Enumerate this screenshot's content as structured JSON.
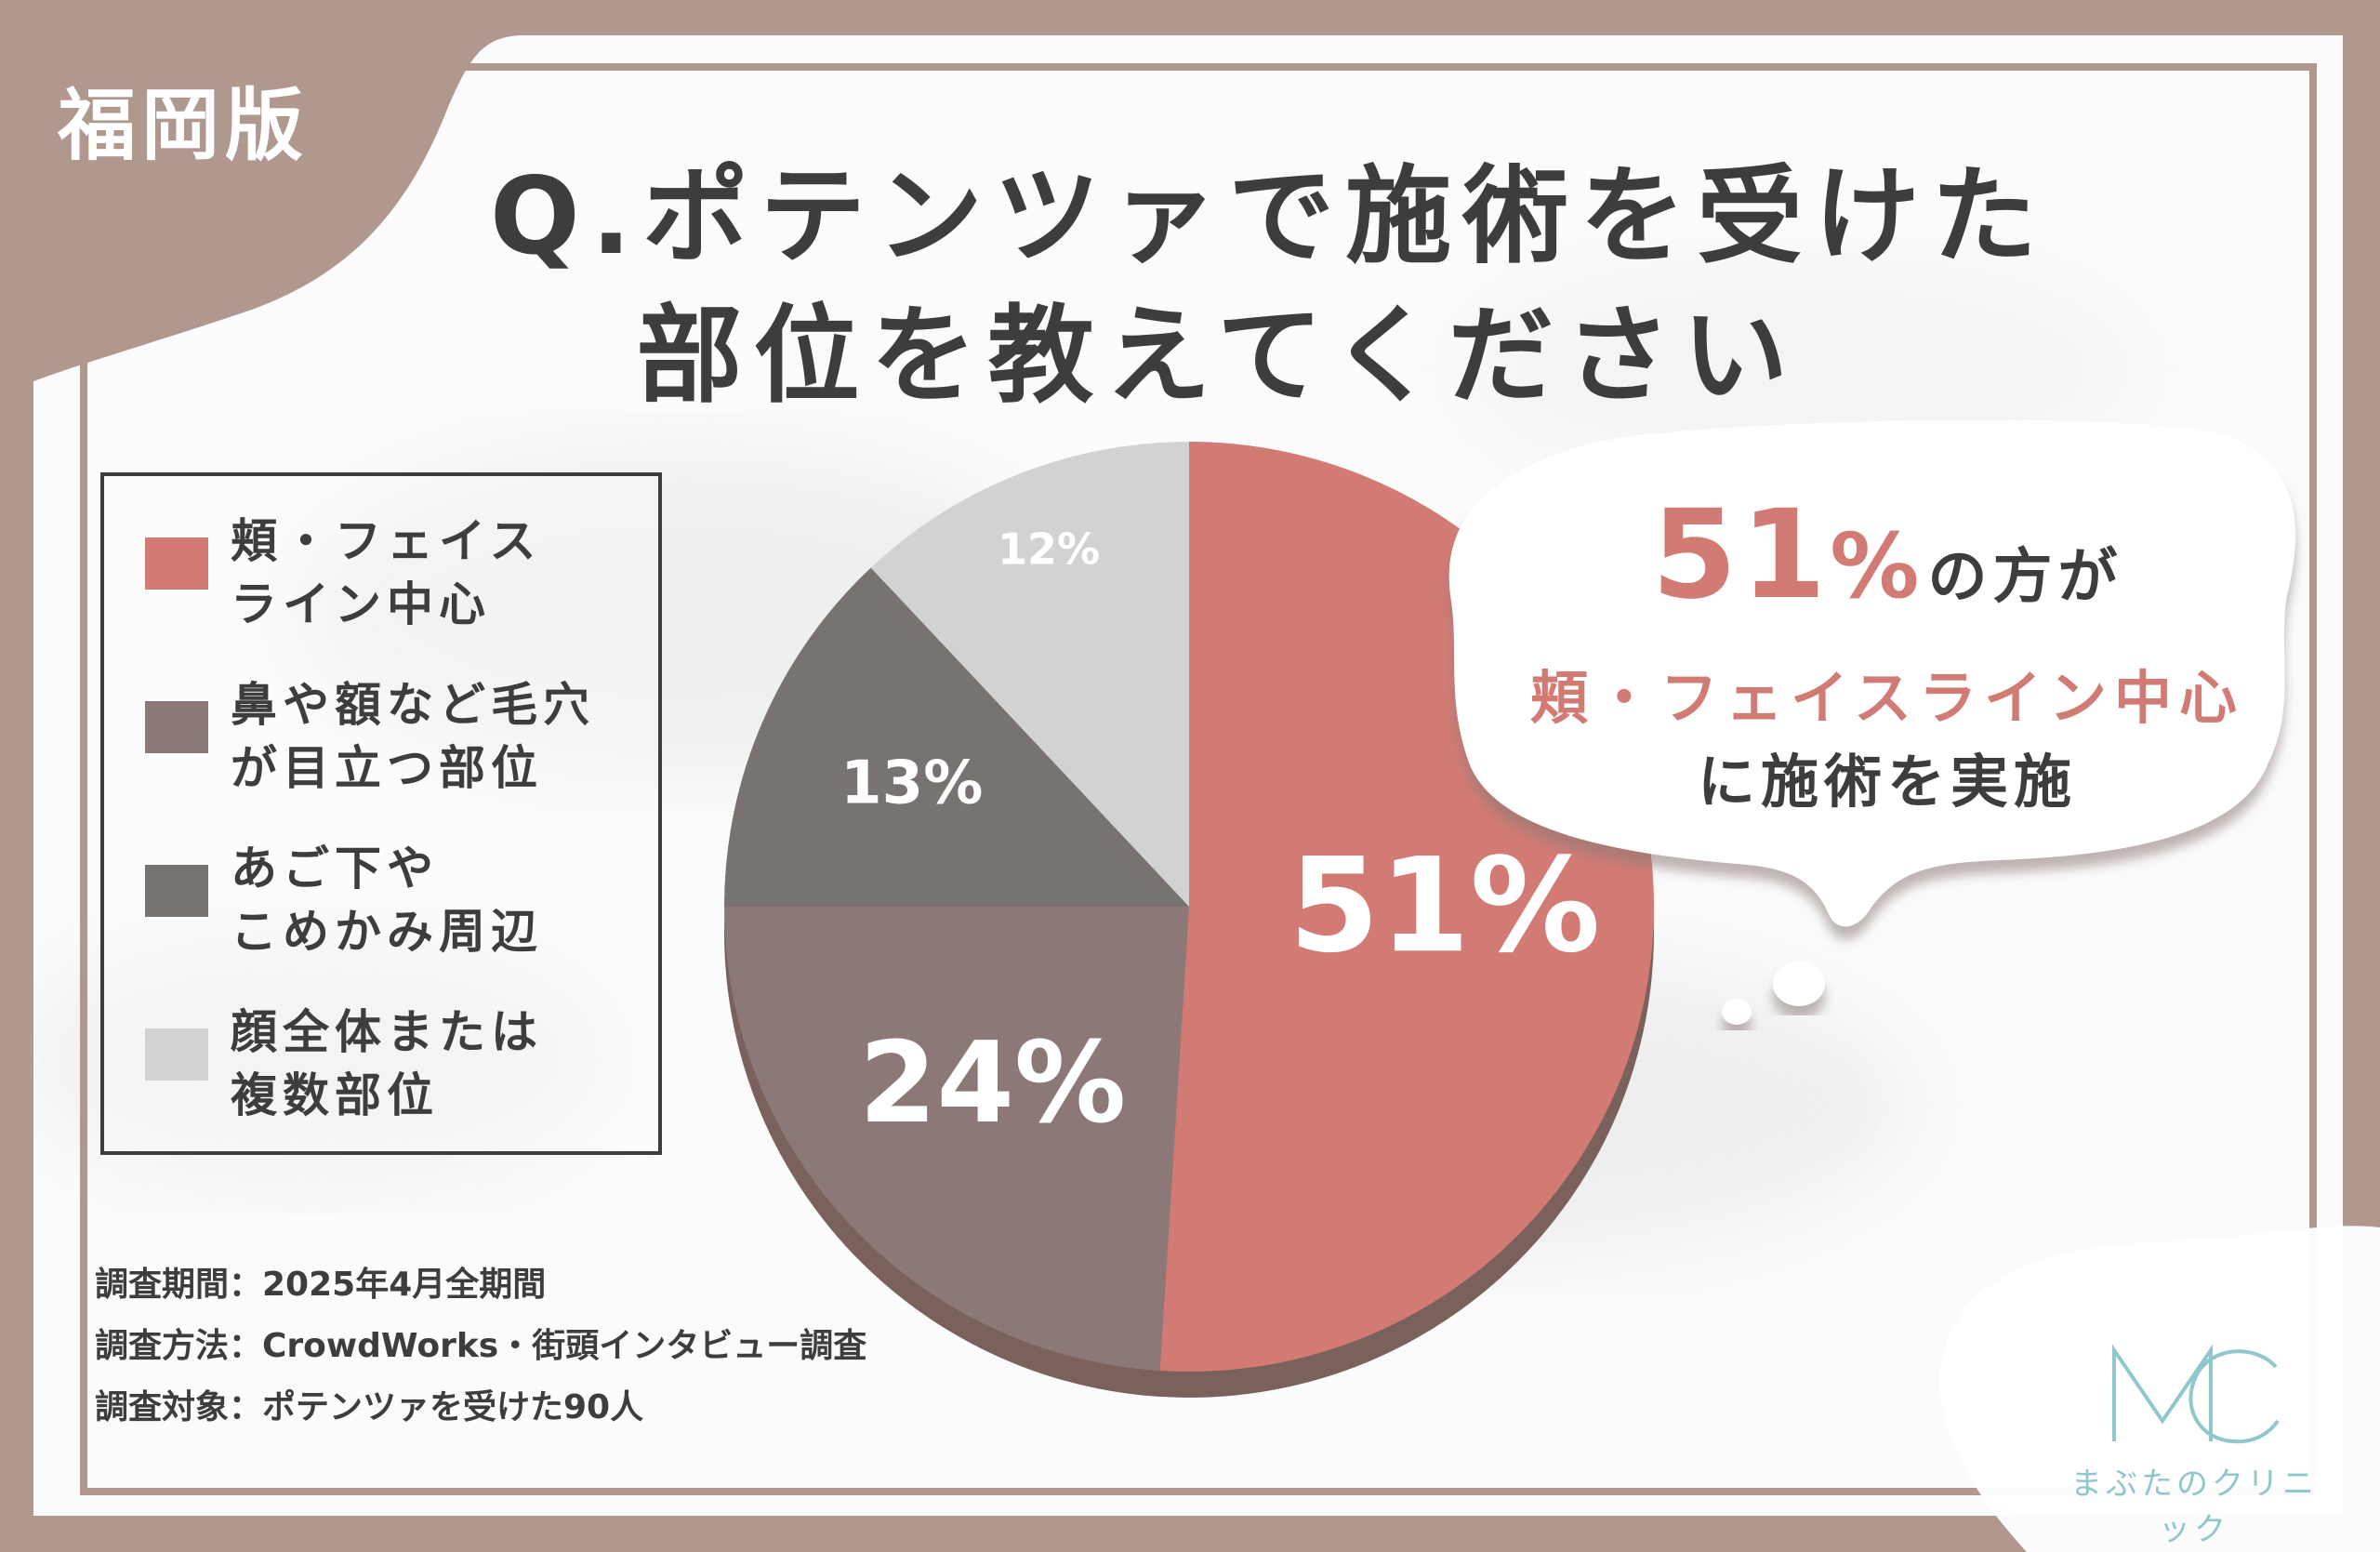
{
  "region_tag": "福岡版",
  "title": {
    "line1": "Q.ポテンツァで施術を受けた",
    "line2": "部位を教えてください"
  },
  "chart_data": {
    "type": "pie",
    "unit": "%",
    "slices": [
      {
        "label": "頬・フェイスライン中心",
        "value": 51,
        "color": "#d27b74",
        "display": "51%"
      },
      {
        "label": "鼻や額など毛穴が目立つ部位",
        "value": 24,
        "color": "#8c7977",
        "display": "24%"
      },
      {
        "label": "あご下やこめかみ周辺",
        "value": 13,
        "color": "#787271",
        "display": "13%"
      },
      {
        "label": "顔全体または複数部位",
        "value": 12,
        "color": "#d2d2d2",
        "display": "12%"
      }
    ],
    "legend_position": "left"
  },
  "legend": {
    "items": [
      {
        "line1": "頬・フェイス",
        "line2": "ライン中心"
      },
      {
        "line1": "鼻や額など毛穴",
        "line2": "が目立つ部位"
      },
      {
        "line1": "あご下や",
        "line2": "こめかみ周辺"
      },
      {
        "line1": "顔全体または",
        "line2": "複数部位"
      }
    ]
  },
  "callout": {
    "pct_number": "51",
    "pct_sign": "%",
    "line1_rest": "の方が",
    "line2": "頬・フェイスライン中心",
    "line3": "に施術を実施"
  },
  "survey": {
    "period": "調査期間：2025年4月全期間",
    "method": "調査方法：CrowdWorks・街頭インタビュー調査",
    "target": "調査対象：ポテンツァを受けた90人"
  },
  "logo": {
    "text": "まぶたのクリニック",
    "color": "#8fc7cc"
  },
  "colors": {
    "frame": "#b0988f",
    "text": "#3d3d3d",
    "accent": "#d27b74"
  }
}
